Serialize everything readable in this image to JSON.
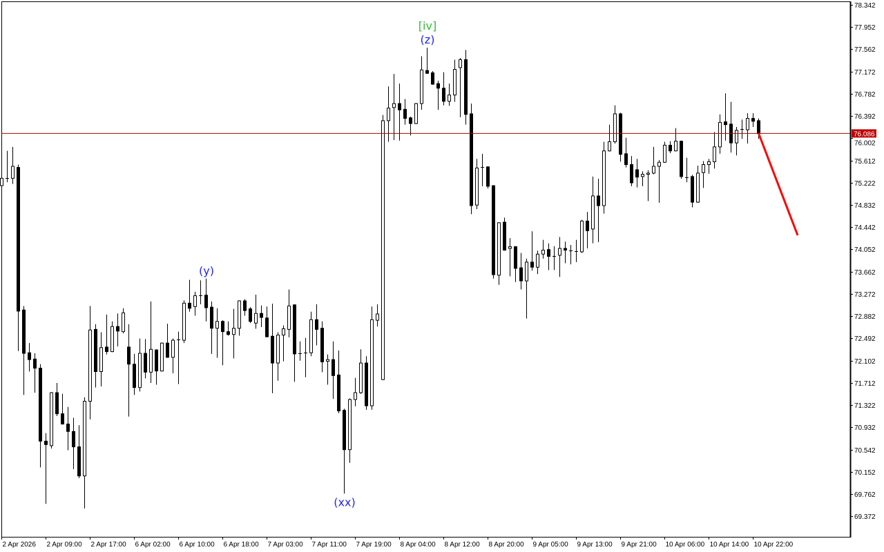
{
  "chart_data": {
    "type": "candlestick",
    "title": "",
    "xlabel": "",
    "ylabel": "",
    "ylim": [
      69.012,
      78.402
    ],
    "grid": false,
    "y_ticks": [
      "78.342",
      "77.952",
      "77.562",
      "77.172",
      "76.782",
      "76.392",
      "76.002",
      "75.612",
      "75.222",
      "74.832",
      "74.442",
      "74.052",
      "73.662",
      "73.272",
      "72.882",
      "72.492",
      "72.102",
      "71.712",
      "71.322",
      "70.932",
      "70.542",
      "70.152",
      "69.762",
      "69.372"
    ],
    "x_ticks": [
      {
        "bar": 0,
        "label": "2 Apr 2026"
      },
      {
        "bar": 8,
        "label": "2 Apr 09:00"
      },
      {
        "bar": 16,
        "label": "2 Apr 17:00"
      },
      {
        "bar": 24,
        "label": "6 Apr 02:00"
      },
      {
        "bar": 32,
        "label": "6 Apr 10:00"
      },
      {
        "bar": 40,
        "label": "6 Apr 18:00"
      },
      {
        "bar": 48,
        "label": "7 Apr 03:00"
      },
      {
        "bar": 56,
        "label": "7 Apr 11:00"
      },
      {
        "bar": 64,
        "label": "7 Apr 19:00"
      },
      {
        "bar": 72,
        "label": "8 Apr 04:00"
      },
      {
        "bar": 80,
        "label": "8 Apr 12:00"
      },
      {
        "bar": 88,
        "label": "8 Apr 20:00"
      },
      {
        "bar": 96,
        "label": "9 Apr 05:00"
      },
      {
        "bar": 104,
        "label": "9 Apr 13:00"
      },
      {
        "bar": 112,
        "label": "9 Apr 21:00"
      },
      {
        "bar": 120,
        "label": "10 Apr 06:00"
      },
      {
        "bar": 128,
        "label": "10 Apr 14:00"
      },
      {
        "bar": 136,
        "label": "10 Apr 22:00"
      }
    ],
    "current_price": "76.086",
    "colors": {
      "bull_body": "#ffffff",
      "bear_body": "#000000",
      "outline": "#000000",
      "price_line": "#b00000",
      "price_label_bg": "#c00000",
      "forecast": "#ff0000",
      "wave_blue": "#2222ff",
      "wave_green": "#33bb33"
    },
    "forecast_line": {
      "start_price": 76.086,
      "end_price": 74.3,
      "end_bars_ahead": 7
    },
    "annotations": [
      {
        "text": "[iv]",
        "bar": 77,
        "position": "above",
        "row": 2,
        "color": "#33bb33"
      },
      {
        "text": "(z)",
        "bar": 77,
        "position": "above",
        "row": 1,
        "color": "#2222ff"
      },
      {
        "text": "(y)",
        "bar": 37,
        "position": "above",
        "row": 1,
        "color": "#2222ff"
      },
      {
        "text": "(xx)",
        "bar": 62,
        "position": "below",
        "row": 1,
        "color": "#2222ff"
      }
    ],
    "ohlc": [
      [
        75.17,
        75.33,
        75.15,
        75.3
      ],
      [
        75.3,
        75.78,
        75.23,
        75.31
      ],
      [
        75.3,
        75.85,
        75.2,
        75.51
      ],
      [
        75.49,
        75.54,
        72.27,
        72.97
      ],
      [
        72.99,
        73.06,
        71.5,
        72.23
      ],
      [
        72.24,
        72.41,
        71.91,
        72.12
      ],
      [
        72.13,
        72.23,
        71.54,
        71.97
      ],
      [
        71.97,
        72.04,
        70.23,
        70.69
      ],
      [
        70.69,
        70.83,
        69.59,
        70.63
      ],
      [
        70.61,
        71.55,
        70.56,
        71.54
      ],
      [
        71.54,
        71.71,
        71.13,
        71.17
      ],
      [
        71.17,
        71.52,
        70.98,
        70.99
      ],
      [
        70.99,
        71.29,
        70.53,
        70.86
      ],
      [
        70.86,
        71.1,
        70.2,
        70.59
      ],
      [
        70.59,
        70.97,
        70.04,
        70.08
      ],
      [
        70.08,
        71.46,
        69.51,
        71.39
      ],
      [
        71.39,
        73.06,
        71.07,
        72.64
      ],
      [
        72.65,
        72.74,
        71.63,
        71.91
      ],
      [
        71.91,
        72.6,
        71.65,
        72.33
      ],
      [
        72.34,
        72.91,
        72.21,
        72.26
      ],
      [
        72.26,
        72.79,
        72.25,
        72.7
      ],
      [
        72.7,
        72.93,
        72.35,
        72.62
      ],
      [
        72.61,
        73.02,
        72.58,
        72.94
      ],
      [
        72.34,
        72.74,
        71.12,
        72.04
      ],
      [
        72.04,
        72.22,
        71.5,
        71.63
      ],
      [
        71.63,
        72.49,
        71.56,
        72.23
      ],
      [
        72.23,
        72.48,
        71.79,
        71.9
      ],
      [
        71.9,
        73.14,
        71.71,
        72.3
      ],
      [
        72.29,
        72.3,
        71.68,
        71.92
      ],
      [
        71.92,
        72.42,
        71.91,
        72.41
      ],
      [
        72.41,
        72.75,
        72.15,
        72.16
      ],
      [
        72.16,
        72.49,
        71.88,
        72.46
      ],
      [
        72.46,
        72.61,
        71.69,
        72.47
      ],
      [
        72.46,
        73.16,
        72.41,
        73.11
      ],
      [
        73.11,
        73.52,
        72.96,
        73.02
      ],
      [
        73.05,
        73.31,
        72.89,
        73.24
      ],
      [
        73.24,
        73.51,
        73.09,
        73.25
      ],
      [
        73.25,
        73.54,
        72.79,
        73.03
      ],
      [
        73.04,
        73.14,
        72.22,
        72.67
      ],
      [
        72.67,
        73.02,
        72.15,
        72.79
      ],
      [
        72.79,
        72.81,
        72.02,
        72.61
      ],
      [
        72.61,
        72.79,
        72.54,
        72.56
      ],
      [
        72.56,
        73.01,
        72.14,
        72.67
      ],
      [
        72.67,
        73.16,
        72.54,
        73.15
      ],
      [
        73.15,
        73.18,
        72.89,
        72.98
      ],
      [
        73.01,
        73.04,
        72.76,
        72.79
      ],
      [
        72.76,
        73.26,
        72.66,
        72.93
      ],
      [
        72.93,
        73.07,
        72.69,
        72.86
      ],
      [
        72.85,
        73.05,
        72.51,
        72.52
      ],
      [
        72.53,
        73.1,
        71.53,
        72.06
      ],
      [
        72.06,
        72.6,
        71.75,
        72.55
      ],
      [
        72.55,
        72.72,
        72.09,
        72.66
      ],
      [
        72.65,
        73.35,
        72.51,
        73.06
      ],
      [
        73.08,
        73.09,
        71.73,
        72.22
      ],
      [
        72.23,
        72.44,
        72.1,
        72.23
      ],
      [
        72.23,
        72.5,
        71.81,
        72.24
      ],
      [
        72.24,
        72.96,
        72.18,
        72.82
      ],
      [
        72.82,
        73.09,
        72.37,
        72.65
      ],
      [
        72.67,
        72.79,
        71.9,
        72.08
      ],
      [
        72.09,
        72.21,
        71.68,
        72.12
      ],
      [
        72.12,
        72.44,
        71.43,
        71.84
      ],
      [
        71.85,
        72.28,
        71.18,
        71.22
      ],
      [
        71.23,
        71.26,
        69.77,
        70.54
      ],
      [
        70.54,
        71.44,
        70.31,
        71.42
      ],
      [
        71.42,
        71.8,
        71.3,
        71.54
      ],
      [
        71.54,
        72.3,
        71.52,
        72.06
      ],
      [
        72.06,
        72.18,
        71.24,
        71.31
      ],
      [
        71.31,
        73.05,
        71.24,
        72.82
      ],
      [
        72.81,
        73.09,
        72.7,
        72.92
      ],
      [
        71.77,
        76.41,
        71.76,
        76.31
      ],
      [
        76.31,
        76.91,
        75.94,
        76.53
      ],
      [
        76.54,
        77.13,
        75.97,
        76.61
      ],
      [
        76.61,
        76.96,
        75.96,
        76.5
      ],
      [
        76.51,
        76.69,
        76.24,
        76.35
      ],
      [
        76.36,
        76.38,
        76.05,
        76.26
      ],
      [
        76.26,
        76.62,
        76.25,
        76.61
      ],
      [
        76.61,
        77.44,
        76.5,
        77.2
      ],
      [
        77.19,
        77.59,
        77.13,
        77.14
      ],
      [
        77.15,
        77.18,
        76.94,
        76.95
      ],
      [
        76.96,
        77.01,
        76.5,
        76.88
      ],
      [
        76.88,
        77.16,
        76.58,
        76.65
      ],
      [
        76.65,
        76.96,
        76.57,
        76.76
      ],
      [
        76.76,
        77.38,
        76.64,
        77.21
      ],
      [
        77.24,
        77.41,
        76.37,
        77.38
      ],
      [
        77.38,
        77.55,
        76.24,
        76.42
      ],
      [
        76.43,
        76.61,
        74.67,
        74.82
      ],
      [
        74.83,
        75.64,
        74.76,
        75.48
      ],
      [
        75.49,
        75.73,
        75.16,
        75.5
      ],
      [
        75.5,
        75.51,
        75.12,
        75.16
      ],
      [
        75.17,
        75.18,
        73.54,
        73.61
      ],
      [
        73.6,
        74.53,
        73.43,
        74.52
      ],
      [
        74.53,
        74.61,
        74.03,
        74.04
      ],
      [
        74.07,
        74.25,
        73.58,
        74.1
      ],
      [
        74.1,
        74.11,
        73.48,
        73.72
      ],
      [
        73.73,
        73.99,
        73.35,
        73.5
      ],
      [
        73.5,
        73.89,
        72.84,
        73.83
      ],
      [
        73.83,
        74.37,
        73.68,
        73.74
      ],
      [
        73.74,
        74.03,
        73.62,
        73.97
      ],
      [
        73.97,
        74.22,
        73.89,
        74.04
      ],
      [
        74.05,
        74.16,
        73.69,
        73.93
      ],
      [
        73.93,
        74.11,
        73.69,
        73.94
      ],
      [
        73.95,
        74.27,
        73.57,
        74.07
      ],
      [
        74.07,
        74.19,
        73.81,
        74.04
      ],
      [
        74.03,
        74.13,
        73.79,
        74.03
      ],
      [
        74.02,
        74.22,
        73.83,
        74.01
      ],
      [
        74.01,
        74.57,
        73.99,
        74.55
      ],
      [
        74.55,
        74.71,
        74.07,
        74.38
      ],
      [
        74.41,
        75.33,
        74.16,
        74.99
      ],
      [
        74.99,
        75.29,
        74.18,
        74.82
      ],
      [
        74.82,
        75.94,
        74.68,
        75.78
      ],
      [
        75.78,
        76.24,
        75.77,
        75.94
      ],
      [
        75.94,
        76.58,
        75.91,
        76.43
      ],
      [
        76.43,
        76.45,
        75.59,
        75.72
      ],
      [
        75.73,
        76.01,
        75.49,
        75.54
      ],
      [
        75.54,
        75.69,
        75.16,
        75.22
      ],
      [
        75.45,
        75.64,
        75.14,
        75.32
      ],
      [
        75.33,
        75.42,
        75.16,
        75.37
      ],
      [
        75.37,
        75.44,
        74.9,
        75.39
      ],
      [
        75.39,
        75.85,
        75.37,
        75.51
      ],
      [
        75.51,
        75.62,
        74.87,
        75.58
      ],
      [
        75.58,
        75.94,
        75.57,
        75.88
      ],
      [
        75.88,
        75.95,
        75.74,
        75.78
      ],
      [
        75.78,
        76.18,
        75.77,
        75.95
      ],
      [
        75.95,
        75.96,
        75.29,
        75.33
      ],
      [
        75.32,
        75.66,
        75.23,
        75.32
      ],
      [
        75.33,
        75.36,
        74.79,
        74.88
      ],
      [
        74.88,
        75.52,
        74.87,
        75.39
      ],
      [
        75.4,
        75.6,
        75.13,
        75.54
      ],
      [
        75.54,
        75.64,
        75.38,
        75.59
      ],
      [
        75.59,
        76.11,
        75.47,
        75.85
      ],
      [
        75.85,
        76.42,
        75.73,
        76.28
      ],
      [
        76.29,
        76.79,
        75.96,
        76.24
      ],
      [
        76.25,
        76.64,
        75.75,
        75.92
      ],
      [
        75.92,
        76.2,
        75.7,
        76.14
      ],
      [
        76.15,
        76.33,
        75.99,
        76.16
      ],
      [
        76.15,
        76.44,
        75.91,
        76.35
      ],
      [
        76.35,
        76.44,
        76.2,
        76.3
      ],
      [
        76.31,
        76.35,
        75.99,
        76.086
      ]
    ]
  }
}
